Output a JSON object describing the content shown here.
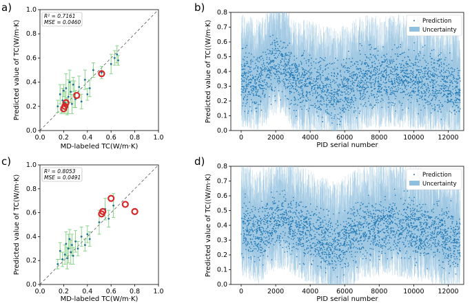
{
  "colors": {
    "scatter_dot": "#1f6f8f",
    "errorbar": "#7fcf7f",
    "highlight_ring": "#d62728",
    "pred_dot": "#1f77b4",
    "uncertainty": "#8fbfdf",
    "identity_line": "#555555"
  },
  "chart_data": [
    {
      "panel": "a)",
      "type": "scatter",
      "xlabel": "MD-labeled TC(W/m·K)",
      "ylabel": "Predicted value of TC(W/m·K)",
      "xlim": [
        0.0,
        1.0
      ],
      "ylim": [
        0.0,
        1.0
      ],
      "xticks": [
        "0.0",
        "0.2",
        "0.4",
        "0.6",
        "0.8",
        "1.0"
      ],
      "yticks": [
        "0.0",
        "0.2",
        "0.4",
        "0.6",
        "0.8",
        "1.0"
      ],
      "stats": {
        "r2": "R² = 0.7161",
        "mse": "MSE = 0.0460"
      },
      "identity_line": true,
      "points": [
        {
          "x": 0.15,
          "y": 0.2,
          "err": 0.05
        },
        {
          "x": 0.17,
          "y": 0.3,
          "err": 0.08
        },
        {
          "x": 0.18,
          "y": 0.17,
          "err": 0.03
        },
        {
          "x": 0.19,
          "y": 0.25,
          "err": 0.1
        },
        {
          "x": 0.2,
          "y": 0.33,
          "err": 0.05
        },
        {
          "x": 0.21,
          "y": 0.23,
          "err": 0.09
        },
        {
          "x": 0.22,
          "y": 0.35,
          "err": 0.12
        },
        {
          "x": 0.23,
          "y": 0.2,
          "err": 0.07
        },
        {
          "x": 0.24,
          "y": 0.28,
          "err": 0.14
        },
        {
          "x": 0.25,
          "y": 0.4,
          "err": 0.1
        },
        {
          "x": 0.26,
          "y": 0.32,
          "err": 0.09
        },
        {
          "x": 0.27,
          "y": 0.22,
          "err": 0.08
        },
        {
          "x": 0.28,
          "y": 0.38,
          "err": 0.06
        },
        {
          "x": 0.29,
          "y": 0.3,
          "err": 0.11
        },
        {
          "x": 0.3,
          "y": 0.26,
          "err": 0.07
        },
        {
          "x": 0.33,
          "y": 0.36,
          "err": 0.09
        },
        {
          "x": 0.35,
          "y": 0.24,
          "err": 0.06
        },
        {
          "x": 0.38,
          "y": 0.42,
          "err": 0.08
        },
        {
          "x": 0.4,
          "y": 0.3,
          "err": 0.05
        },
        {
          "x": 0.42,
          "y": 0.35,
          "err": 0.07
        },
        {
          "x": 0.45,
          "y": 0.5,
          "err": 0.06
        },
        {
          "x": 0.52,
          "y": 0.48,
          "err": 0.05
        },
        {
          "x": 0.6,
          "y": 0.55,
          "err": 0.08
        },
        {
          "x": 0.63,
          "y": 0.6,
          "err": 0.06
        },
        {
          "x": 0.65,
          "y": 0.63,
          "err": 0.07
        },
        {
          "x": 0.66,
          "y": 0.58,
          "err": 0.04
        }
      ],
      "highlighted": [
        {
          "x": 0.2,
          "y": 0.18
        },
        {
          "x": 0.21,
          "y": 0.2
        },
        {
          "x": 0.22,
          "y": 0.23
        },
        {
          "x": 0.31,
          "y": 0.29
        },
        {
          "x": 0.52,
          "y": 0.47
        }
      ]
    },
    {
      "panel": "b)",
      "type": "scatter",
      "xlabel": "PID serial number",
      "ylabel": "Predicted value of TC((W/m·K)",
      "xlim": [
        -600,
        12900
      ],
      "ylim": [
        0.0,
        0.8
      ],
      "xticks": [
        "0",
        "2000",
        "4000",
        "6000",
        "8000",
        "10000",
        "12000"
      ],
      "xtick_values": [
        0,
        2000,
        4000,
        6000,
        8000,
        10000,
        12000
      ],
      "yticks": [
        "0.0",
        "0.1",
        "0.2",
        "0.3",
        "0.4",
        "0.5",
        "0.6",
        "0.7",
        "0.8"
      ],
      "n_points": 12700,
      "trend": [
        {
          "x": 0,
          "y": 0.36
        },
        {
          "x": 1000,
          "y": 0.32
        },
        {
          "x": 2000,
          "y": 0.45
        },
        {
          "x": 2500,
          "y": 0.45
        },
        {
          "x": 3000,
          "y": 0.33
        },
        {
          "x": 4000,
          "y": 0.32
        },
        {
          "x": 5500,
          "y": 0.26
        },
        {
          "x": 7000,
          "y": 0.35
        },
        {
          "x": 8500,
          "y": 0.36
        },
        {
          "x": 10000,
          "y": 0.35
        },
        {
          "x": 11500,
          "y": 0.31
        },
        {
          "x": 12700,
          "y": 0.29
        }
      ],
      "legend": [
        "Prediction",
        "Uncertainty"
      ],
      "legend_position": "top-right"
    },
    {
      "panel": "c)",
      "type": "scatter",
      "xlabel": "MD-labeled TC(W/m·K)",
      "ylabel": "Predicted value of TC(W/m·K)",
      "xlim": [
        0.0,
        1.0
      ],
      "ylim": [
        0.0,
        1.0
      ],
      "xticks": [
        "0.0",
        "0.2",
        "0.4",
        "0.6",
        "0.8",
        "1.0"
      ],
      "yticks": [
        "0.0",
        "0.2",
        "0.4",
        "0.6",
        "0.8",
        "1.0"
      ],
      "stats": {
        "r2": "R² = 0.8053",
        "mse": "MSE = 0.0491"
      },
      "identity_line": true,
      "points": [
        {
          "x": 0.15,
          "y": 0.17,
          "err": 0.04
        },
        {
          "x": 0.17,
          "y": 0.28,
          "err": 0.07
        },
        {
          "x": 0.19,
          "y": 0.21,
          "err": 0.06
        },
        {
          "x": 0.21,
          "y": 0.25,
          "err": 0.08
        },
        {
          "x": 0.22,
          "y": 0.34,
          "err": 0.1
        },
        {
          "x": 0.23,
          "y": 0.22,
          "err": 0.09
        },
        {
          "x": 0.24,
          "y": 0.3,
          "err": 0.12
        },
        {
          "x": 0.25,
          "y": 0.38,
          "err": 0.08
        },
        {
          "x": 0.26,
          "y": 0.27,
          "err": 0.1
        },
        {
          "x": 0.27,
          "y": 0.33,
          "err": 0.09
        },
        {
          "x": 0.28,
          "y": 0.24,
          "err": 0.07
        },
        {
          "x": 0.3,
          "y": 0.36,
          "err": 0.09
        },
        {
          "x": 0.32,
          "y": 0.3,
          "err": 0.06
        },
        {
          "x": 0.35,
          "y": 0.4,
          "err": 0.08
        },
        {
          "x": 0.38,
          "y": 0.33,
          "err": 0.05
        },
        {
          "x": 0.4,
          "y": 0.42,
          "err": 0.07
        },
        {
          "x": 0.42,
          "y": 0.38,
          "err": 0.06
        },
        {
          "x": 0.5,
          "y": 0.52,
          "err": 0.1
        },
        {
          "x": 0.55,
          "y": 0.63,
          "err": 0.09
        },
        {
          "x": 0.58,
          "y": 0.55,
          "err": 0.07
        },
        {
          "x": 0.62,
          "y": 0.66,
          "err": 0.1
        }
      ],
      "highlighted": [
        {
          "x": 0.52,
          "y": 0.59
        },
        {
          "x": 0.53,
          "y": 0.61
        },
        {
          "x": 0.6,
          "y": 0.72
        },
        {
          "x": 0.72,
          "y": 0.67
        },
        {
          "x": 0.8,
          "y": 0.61
        }
      ]
    },
    {
      "panel": "d)",
      "type": "scatter",
      "xlabel": "PID serial number",
      "ylabel": "Predicted value of TC((W/m·K)",
      "xlim": [
        -600,
        12900
      ],
      "ylim": [
        0.0,
        0.8
      ],
      "xticks": [
        "0",
        "2000",
        "4000",
        "6000",
        "8000",
        "10000",
        "12000"
      ],
      "xtick_values": [
        0,
        2000,
        4000,
        6000,
        8000,
        10000,
        12000
      ],
      "yticks": [
        "0.0",
        "0.1",
        "0.2",
        "0.3",
        "0.4",
        "0.5",
        "0.6",
        "0.7",
        "0.8"
      ],
      "n_points": 12700,
      "trend": [
        {
          "x": 0,
          "y": 0.4
        },
        {
          "x": 1000,
          "y": 0.34
        },
        {
          "x": 2000,
          "y": 0.44
        },
        {
          "x": 2500,
          "y": 0.44
        },
        {
          "x": 3500,
          "y": 0.37
        },
        {
          "x": 4500,
          "y": 0.32
        },
        {
          "x": 5500,
          "y": 0.26
        },
        {
          "x": 7000,
          "y": 0.38
        },
        {
          "x": 8500,
          "y": 0.4
        },
        {
          "x": 10000,
          "y": 0.37
        },
        {
          "x": 11500,
          "y": 0.33
        },
        {
          "x": 12700,
          "y": 0.3
        }
      ],
      "legend": [
        "Prediction",
        "Uncertainty"
      ],
      "legend_position": "top-right"
    }
  ]
}
